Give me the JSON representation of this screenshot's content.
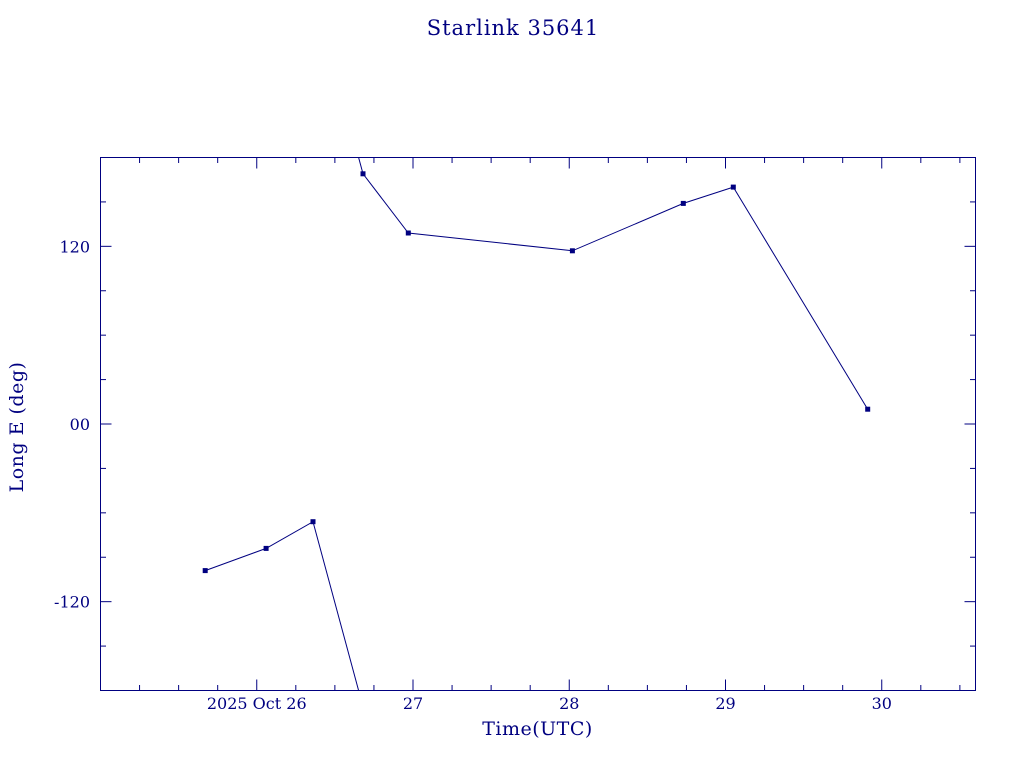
{
  "page": {
    "background": "#ffffff"
  },
  "chart_data": {
    "type": "line",
    "title": "Starlink 35641",
    "xlabel": "Time(UTC)",
    "ylabel": "Long E (deg)",
    "x_unit": "day of October 2025 (UTC)",
    "xlim": [
      25.0,
      30.6
    ],
    "ylim": [
      -180,
      180
    ],
    "wrap_degrees": 360,
    "grid": false,
    "legend": false,
    "colors": {
      "line": "#000080",
      "marker": "#000080",
      "text": "#000080",
      "background": "#ffffff"
    },
    "x_major_ticks": [
      {
        "value": 26,
        "label": "2025 Oct 26"
      },
      {
        "value": 27,
        "label": "27"
      },
      {
        "value": 28,
        "label": "28"
      },
      {
        "value": 29,
        "label": "29"
      },
      {
        "value": 30,
        "label": "30"
      }
    ],
    "x_minor_step": 0.25,
    "y_major_ticks": [
      {
        "value": 120,
        "label": "120"
      },
      {
        "value": 0,
        "label": "00"
      },
      {
        "value": -120,
        "label": "-120"
      }
    ],
    "y_minor_step": 30,
    "series": [
      {
        "name": "Long E",
        "marker": "square",
        "points": [
          {
            "x": 25.67,
            "y": -99
          },
          {
            "x": 26.06,
            "y": -84
          },
          {
            "x": 26.36,
            "y": -66
          },
          {
            "x": 26.68,
            "y": 169
          },
          {
            "x": 26.97,
            "y": 129
          },
          {
            "x": 28.02,
            "y": 117
          },
          {
            "x": 28.73,
            "y": 149
          },
          {
            "x": 29.05,
            "y": 160
          },
          {
            "x": 29.91,
            "y": 10
          }
        ]
      }
    ]
  }
}
